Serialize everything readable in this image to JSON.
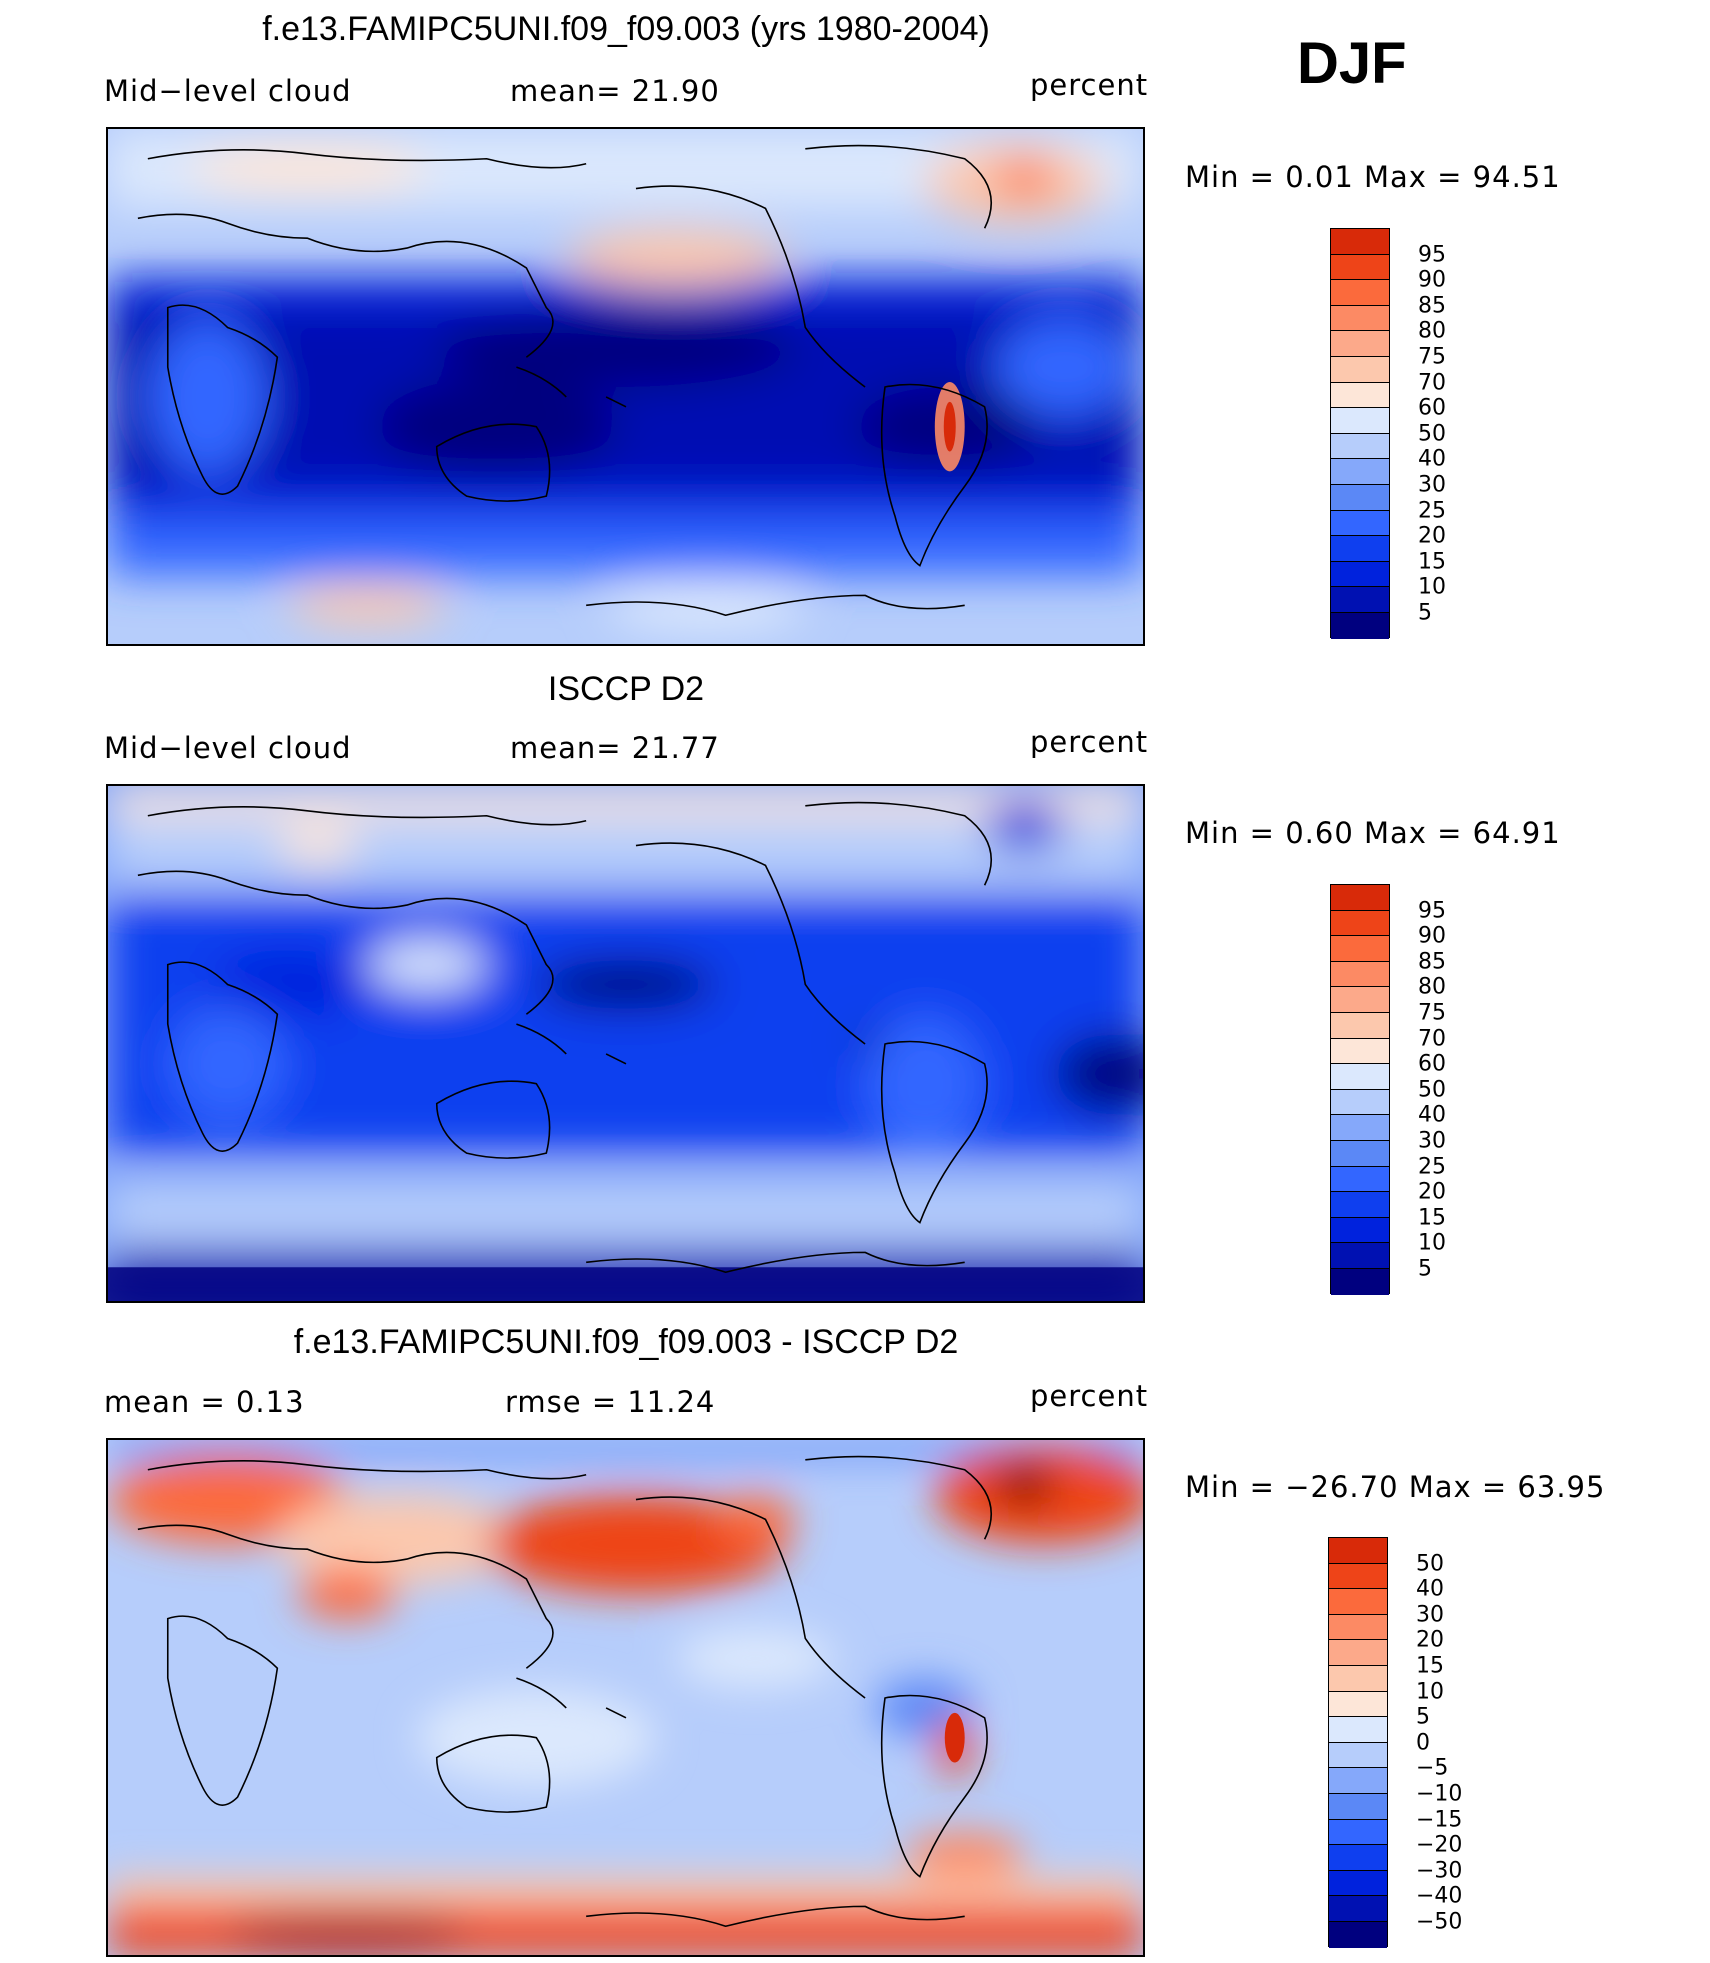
{
  "season": "DJF",
  "colors": {
    "seq": [
      "#00007f",
      "#0011b2",
      "#0022dd",
      "#0f3fef",
      "#3366ff",
      "#5b88f6",
      "#85a8fa",
      "#b6cdfb",
      "#dbe8fd",
      "#fde6d8",
      "#fcc8ad",
      "#fca98a",
      "#fc8a64",
      "#fb6a3c",
      "#ee4418",
      "#d82a09",
      "#b51703",
      "#820000"
    ],
    "diff": [
      "#00007f",
      "#0011b2",
      "#0022dd",
      "#0f3fef",
      "#3366ff",
      "#5b88f6",
      "#85a8fa",
      "#b6cdfb",
      "#dbe8fd",
      "#fde6d8",
      "#fcc8ad",
      "#fca98a",
      "#fc8a64",
      "#fb6a3c",
      "#ee4418",
      "#d82a09",
      "#b51703",
      "#820000"
    ]
  },
  "chart_data": [
    {
      "type": "heatmap",
      "title": "f.e13.FAMIPC5UNI.f09_f09.003 (yrs 1980-2004)",
      "left_label": "Mid−level cloud",
      "center_label": "mean=   21.90",
      "right_label": "percent",
      "minmax": "Min =     0.01  Max  =    94.51",
      "mean": 21.9,
      "min": 0.01,
      "max": 94.51,
      "levels": [
        "95",
        "90",
        "85",
        "80",
        "75",
        "70",
        "60",
        "50",
        "40",
        "30",
        "25",
        "20",
        "15",
        "10",
        "5"
      ]
    },
    {
      "type": "heatmap",
      "title": "ISCCP D2",
      "left_label": "Mid−level cloud",
      "center_label": "mean=   21.77",
      "right_label": "percent",
      "minmax": "Min =     0.60  Max  =    64.91",
      "mean": 21.77,
      "min": 0.6,
      "max": 64.91,
      "levels": [
        "95",
        "90",
        "85",
        "80",
        "75",
        "70",
        "60",
        "50",
        "40",
        "30",
        "25",
        "20",
        "15",
        "10",
        "5"
      ]
    },
    {
      "type": "heatmap",
      "title": "f.e13.FAMIPC5UNI.f09_f09.003 - ISCCP D2",
      "left_label": "mean =      0.13",
      "center_label": "rmse  =     11.24",
      "right_label": "percent",
      "minmax": "Min  = −26.70  Max  =     63.95",
      "mean": 0.13,
      "rmse": 11.24,
      "min": -26.7,
      "max": 63.95,
      "levels": [
        "50",
        "40",
        "30",
        "20",
        "15",
        "10",
        "5",
        "0",
        "−5",
        "−10",
        "−15",
        "−20",
        "−30",
        "−40",
        "−50"
      ]
    }
  ]
}
